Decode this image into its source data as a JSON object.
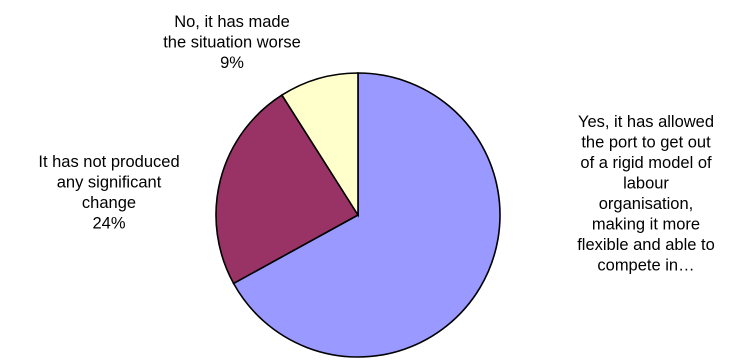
{
  "chart_data": {
    "type": "pie",
    "start_angle_deg": 0,
    "direction": "clockwise",
    "slices": [
      {
        "label_lines": [
          "Yes, it has allowed",
          "the port to get out",
          "of a rigid model of",
          "labour",
          "organisation,",
          "making it more",
          "flexible and able to",
          "compete in…"
        ],
        "percent_text": "",
        "value": 67,
        "color": "#9999ff"
      },
      {
        "label_lines": [
          "It has not produced",
          "any significant",
          "change"
        ],
        "percent_text": "24%",
        "value": 24,
        "color": "#993366"
      },
      {
        "label_lines": [
          "No, it has made",
          "the situation worse"
        ],
        "percent_text": "9%",
        "value": 9,
        "color": "#ffffcc"
      }
    ]
  }
}
